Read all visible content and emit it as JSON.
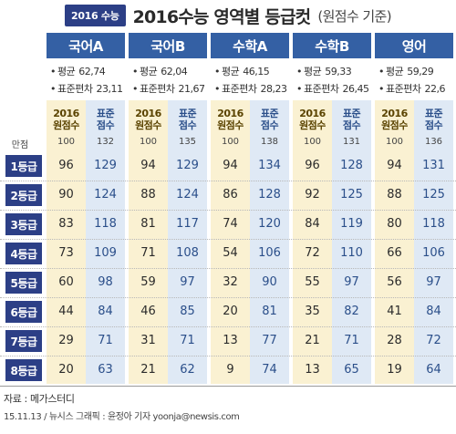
{
  "header": {
    "badge": "2016 수능",
    "title": "2016수능 영역별 등급컷",
    "subtitle": "(원점수 기준)"
  },
  "subjects": [
    {
      "name": "국어A",
      "mean_label": "평균",
      "mean": "62,74",
      "sd_label": "표준편차",
      "sd": "23,11",
      "raw_head": [
        "2016",
        "원점수"
      ],
      "std_head": [
        "표준",
        "점수"
      ],
      "perfect_raw": "100",
      "perfect_std": "132"
    },
    {
      "name": "국어B",
      "mean_label": "평균",
      "mean": "62,04",
      "sd_label": "표준편차",
      "sd": "21,67",
      "raw_head": [
        "2016",
        "원점수"
      ],
      "std_head": [
        "표준",
        "점수"
      ],
      "perfect_raw": "100",
      "perfect_std": "135"
    },
    {
      "name": "수학A",
      "mean_label": "평균",
      "mean": "46,15",
      "sd_label": "표준편차",
      "sd": "28,23",
      "raw_head": [
        "2016",
        "원점수"
      ],
      "std_head": [
        "표준",
        "점수"
      ],
      "perfect_raw": "100",
      "perfect_std": "138"
    },
    {
      "name": "수학B",
      "mean_label": "평균",
      "mean": "59,33",
      "sd_label": "표준편차",
      "sd": "26,45",
      "raw_head": [
        "2016",
        "원점수"
      ],
      "std_head": [
        "표준",
        "점수"
      ],
      "perfect_raw": "100",
      "perfect_std": "131"
    },
    {
      "name": "영어",
      "mean_label": "평균",
      "mean": "59,29",
      "sd_label": "표준편차",
      "sd": "22,6",
      "raw_head": [
        "2016",
        "원점수"
      ],
      "std_head": [
        "표준",
        "점수"
      ],
      "perfect_raw": "100",
      "perfect_std": "136"
    }
  ],
  "perfect_label": "만점",
  "grades": [
    {
      "label": "1등급",
      "scores": [
        [
          "96",
          "129"
        ],
        [
          "94",
          "129"
        ],
        [
          "94",
          "134"
        ],
        [
          "96",
          "128"
        ],
        [
          "94",
          "131"
        ]
      ]
    },
    {
      "label": "2등급",
      "scores": [
        [
          "90",
          "124"
        ],
        [
          "88",
          "124"
        ],
        [
          "86",
          "128"
        ],
        [
          "92",
          "125"
        ],
        [
          "88",
          "125"
        ]
      ]
    },
    {
      "label": "3등급",
      "scores": [
        [
          "83",
          "118"
        ],
        [
          "81",
          "117"
        ],
        [
          "74",
          "120"
        ],
        [
          "84",
          "119"
        ],
        [
          "80",
          "118"
        ]
      ]
    },
    {
      "label": "4등급",
      "scores": [
        [
          "73",
          "109"
        ],
        [
          "71",
          "108"
        ],
        [
          "54",
          "106"
        ],
        [
          "72",
          "110"
        ],
        [
          "66",
          "106"
        ]
      ]
    },
    {
      "label": "5등급",
      "scores": [
        [
          "60",
          "98"
        ],
        [
          "59",
          "97"
        ],
        [
          "32",
          "90"
        ],
        [
          "55",
          "97"
        ],
        [
          "56",
          "97"
        ]
      ]
    },
    {
      "label": "6등급",
      "scores": [
        [
          "44",
          "84"
        ],
        [
          "46",
          "85"
        ],
        [
          "20",
          "81"
        ],
        [
          "35",
          "82"
        ],
        [
          "41",
          "84"
        ]
      ]
    },
    {
      "label": "7등급",
      "scores": [
        [
          "29",
          "71"
        ],
        [
          "31",
          "71"
        ],
        [
          "13",
          "77"
        ],
        [
          "21",
          "71"
        ],
        [
          "28",
          "72"
        ]
      ]
    },
    {
      "label": "8등급",
      "scores": [
        [
          "20",
          "63"
        ],
        [
          "21",
          "62"
        ],
        [
          "9",
          "74"
        ],
        [
          "13",
          "65"
        ],
        [
          "19",
          "64"
        ]
      ]
    }
  ],
  "footer": {
    "source": "자료 : 메가스터디",
    "credit": "15.11.13 / 뉴시스 그래픽 : 윤정아 기자  yoonja@newsis.com"
  }
}
